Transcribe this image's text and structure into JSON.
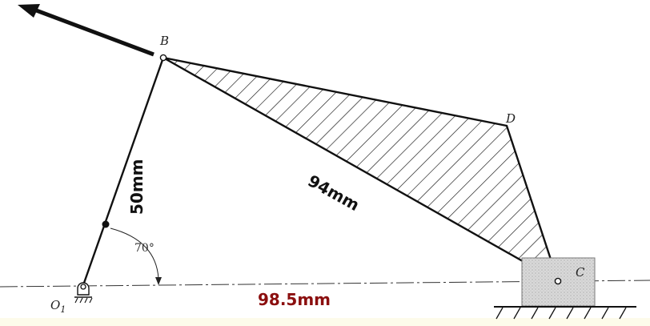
{
  "labels": {
    "B": "B",
    "C": "C",
    "D": "D",
    "O1": "O",
    "O1_sub": "1"
  },
  "dimensions": {
    "crank_length": "50mm",
    "coupler_length": "94mm",
    "offset_length": "98.5mm"
  },
  "angle": "70°",
  "colors": {
    "ink": "#111111",
    "dimension_red": "#8b0f0f",
    "slider_fill": "#dcdcdc"
  }
}
